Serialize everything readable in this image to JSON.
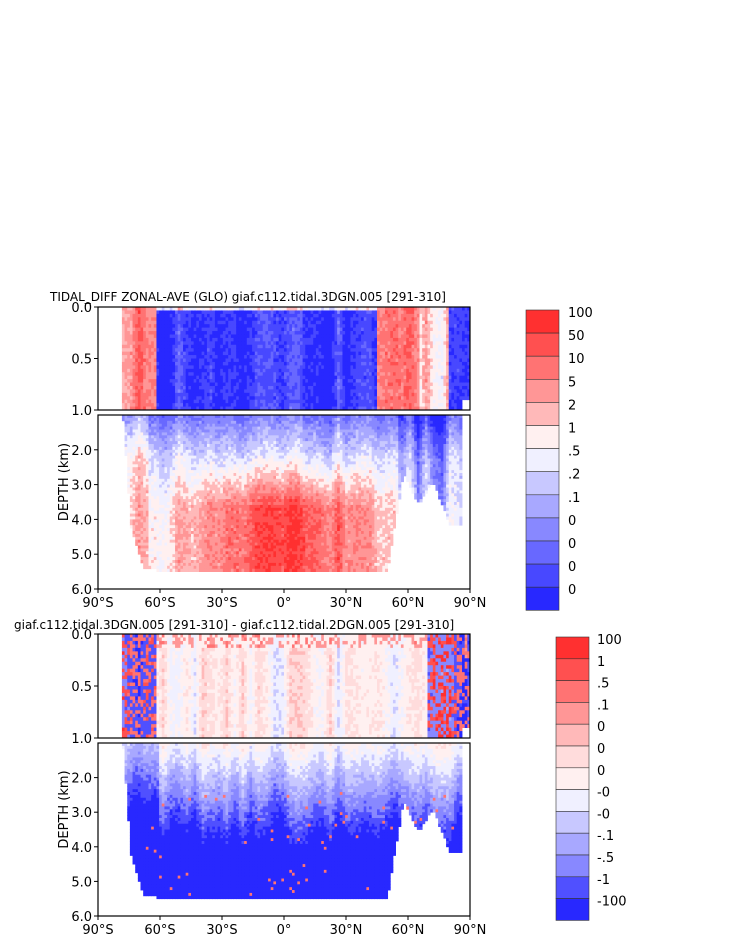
{
  "chart_data": [
    {
      "type": "heatmap",
      "title": "TIDAL_DIFF ZONAL-AVE (GLO) giaf.c112.tidal.3DGN.005 [291-310]",
      "xlabel": "",
      "ylabel": "DEPTH (km)",
      "xlim": [
        -90,
        90
      ],
      "upper_panel_ylim": [
        0.0,
        1.0
      ],
      "lower_panel_ylim": [
        1.0,
        6.0
      ],
      "x_ticks": [
        "90°S",
        "60°S",
        "30°S",
        "0°",
        "30°N",
        "60°N",
        "90°N"
      ],
      "y_ticks_upper": [
        "0.0",
        "0.5",
        "1.0"
      ],
      "y_ticks_lower": [
        "2.0",
        "3.0",
        "4.0",
        "5.0",
        "6.0"
      ],
      "colorbar": {
        "labels": [
          "100",
          "50",
          "10",
          "5",
          "2",
          "1",
          ".5",
          ".2",
          ".1",
          "0",
          "0",
          "0",
          "0"
        ],
        "colors": [
          "#ff3030",
          "#ff5050",
          "#ff7373",
          "#ff9696",
          "#ffb9b9",
          "#fff0f0",
          "#f0f0ff",
          "#c8c8ff",
          "#a8a8ff",
          "#8888ff",
          "#6868ff",
          "#4848ff",
          "#2828ff"
        ]
      },
      "pattern": "A"
    },
    {
      "type": "heatmap",
      "title": "giaf.c112.tidal.3DGN.005 [291-310] - giaf.c112.tidal.2DGN.005 [291-310]",
      "xlabel": "",
      "ylabel": "DEPTH (km)",
      "xlim": [
        -90,
        90
      ],
      "upper_panel_ylim": [
        0.0,
        1.0
      ],
      "lower_panel_ylim": [
        1.0,
        6.0
      ],
      "x_ticks": [
        "90°S",
        "60°S",
        "30°S",
        "0°",
        "30°N",
        "60°N",
        "90°N"
      ],
      "y_ticks_upper": [
        "0.0",
        "0.5",
        "1.0"
      ],
      "y_ticks_lower": [
        "2.0",
        "3.0",
        "4.0",
        "5.0",
        "6.0"
      ],
      "colorbar": {
        "labels": [
          "100",
          "1",
          ".5",
          ".1",
          "0",
          "0",
          "0",
          "-0",
          "-0",
          "-.1",
          "-.5",
          "-1",
          "-100"
        ],
        "colors": [
          "#ff3030",
          "#ff5050",
          "#ff7373",
          "#ff9696",
          "#ffb9b9",
          "#ffdcdc",
          "#fff0f0",
          "#f0f0ff",
          "#c8c8ff",
          "#a8a8ff",
          "#8888ff",
          "#5050ff",
          "#2828ff"
        ]
      },
      "pattern": "B"
    }
  ]
}
